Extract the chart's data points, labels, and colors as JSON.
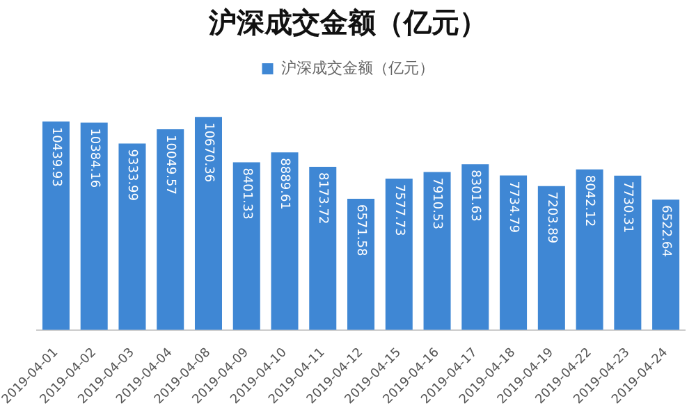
{
  "chart_data": {
    "type": "bar",
    "title": "沪深成交金额（亿元）",
    "categories": [
      "2019-04-01",
      "2019-04-02",
      "2019-04-03",
      "2019-04-04",
      "2019-04-08",
      "2019-04-09",
      "2019-04-10",
      "2019-04-11",
      "2019-04-12",
      "2019-04-15",
      "2019-04-16",
      "2019-04-17",
      "2019-04-18",
      "2019-04-19",
      "2019-04-22",
      "2019-04-23",
      "2019-04-24"
    ],
    "series": [
      {
        "name": "沪深成交金额（亿元）",
        "color": "#3f87d4",
        "values": [
          10439.93,
          10384.16,
          9333.99,
          10049.57,
          10670.36,
          8401.33,
          8889.61,
          8173.72,
          6571.58,
          7577.73,
          7910.53,
          8301.63,
          7734.79,
          7203.89,
          8042.12,
          7730.31,
          6522.64
        ]
      }
    ],
    "data_labels": true,
    "legend": "top",
    "grid": false
  }
}
